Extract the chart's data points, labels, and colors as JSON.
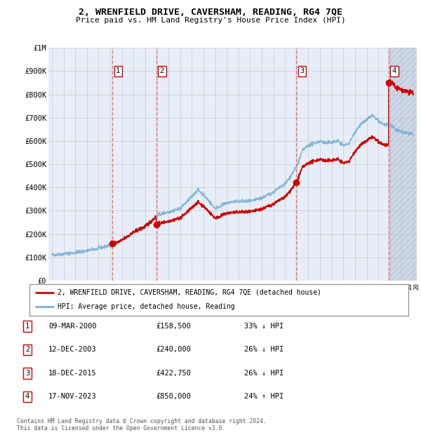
{
  "title": "2, WRENFIELD DRIVE, CAVERSHAM, READING, RG4 7QE",
  "subtitle": "Price paid vs. HM Land Registry's House Price Index (HPI)",
  "ylabel_ticks": [
    "£0",
    "£100K",
    "£200K",
    "£300K",
    "£400K",
    "£500K",
    "£600K",
    "£700K",
    "£800K",
    "£900K",
    "£1M"
  ],
  "ytick_values": [
    0,
    100000,
    200000,
    300000,
    400000,
    500000,
    600000,
    700000,
    800000,
    900000,
    1000000
  ],
  "xlim_start": 1994.7,
  "xlim_end": 2026.3,
  "ylim": [
    0,
    1000000
  ],
  "transactions": [
    {
      "num": 1,
      "year": 2000.19,
      "price": 158500,
      "date": "09-MAR-2000",
      "pct": "33%",
      "dir": "↓"
    },
    {
      "num": 2,
      "year": 2003.95,
      "price": 240000,
      "date": "12-DEC-2003",
      "pct": "26%",
      "dir": "↓"
    },
    {
      "num": 3,
      "year": 2015.96,
      "price": 422750,
      "date": "18-DEC-2015",
      "pct": "26%",
      "dir": "↓"
    },
    {
      "num": 4,
      "year": 2023.88,
      "price": 850000,
      "date": "17-NOV-2023",
      "pct": "24%",
      "dir": "↑"
    }
  ],
  "red_line_label": "2, WRENFIELD DRIVE, CAVERSHAM, READING, RG4 7QE (detached house)",
  "blue_line_label": "HPI: Average price, detached house, Reading",
  "footer": "Contains HM Land Registry data © Crown copyright and database right 2024.\nThis data is licensed under the Open Government Licence v3.0.",
  "table_rows": [
    {
      "num": 1,
      "date": "09-MAR-2000",
      "price": "£158,500",
      "pct": "33% ↓ HPI"
    },
    {
      "num": 2,
      "date": "12-DEC-2003",
      "price": "£240,000",
      "pct": "26% ↓ HPI"
    },
    {
      "num": 3,
      "date": "18-DEC-2015",
      "price": "£422,750",
      "pct": "26% ↓ HPI"
    },
    {
      "num": 4,
      "date": "17-NOV-2023",
      "price": "£850,000",
      "pct": "24% ↑ HPI"
    }
  ],
  "background_color": "#e8eef8",
  "grid_color": "#bbbbbb",
  "dashed_color": "#ff6666",
  "red_line_color": "#cc0000",
  "blue_line_color": "#7ab0d4"
}
